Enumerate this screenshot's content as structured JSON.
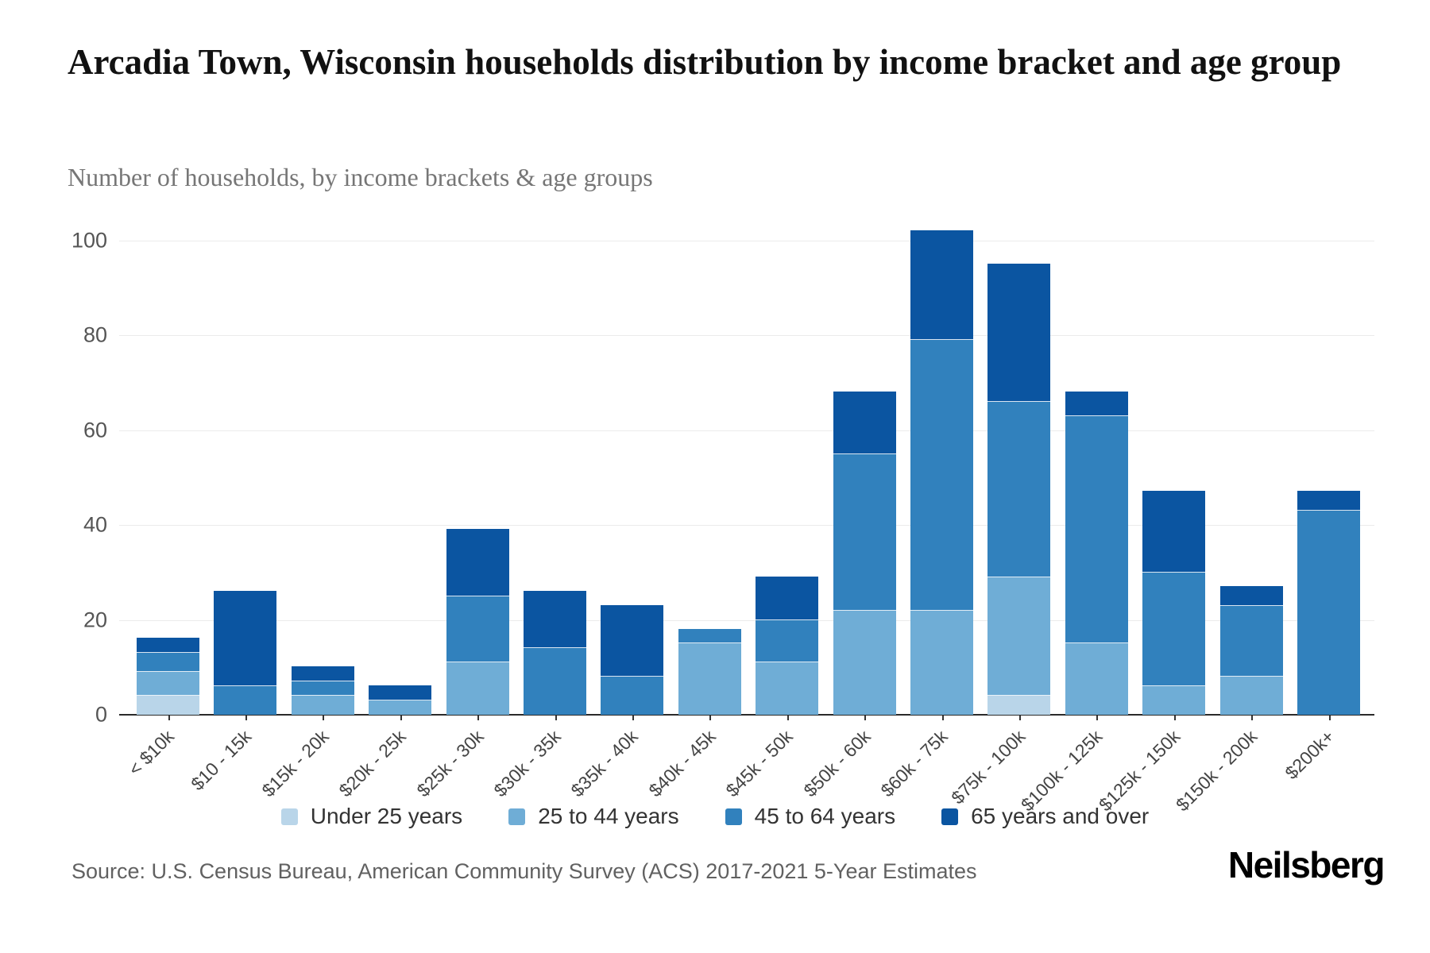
{
  "header": {
    "title": "Arcadia Town, Wisconsin households distribution by income bracket and age group",
    "subtitle": "Number of households, by income brackets & age groups"
  },
  "chart_data": {
    "type": "bar",
    "stacked": true,
    "categories": [
      "< $10k",
      "$10 - 15k",
      "$15k - 20k",
      "$20k - 25k",
      "$25k - 30k",
      "$30k - 35k",
      "$35k - 40k",
      "$40k - 45k",
      "$45k - 50k",
      "$50k - 60k",
      "$60k - 75k",
      "$75k - 100k",
      "$100k - 125k",
      "$125k - 150k",
      "$150k - 200k",
      "$200k+"
    ],
    "series": [
      {
        "name": "Under 25 years",
        "color": "#b9d5e9",
        "values": [
          4,
          0,
          0,
          0,
          0,
          0,
          0,
          0,
          0,
          0,
          0,
          4,
          0,
          0,
          0,
          0
        ]
      },
      {
        "name": "25 to 44 years",
        "color": "#6fadd6",
        "values": [
          5,
          0,
          4,
          3,
          11,
          0,
          0,
          15,
          11,
          22,
          22,
          25,
          15,
          6,
          8,
          0
        ]
      },
      {
        "name": "45 to 64 years",
        "color": "#3181bd",
        "values": [
          4,
          6,
          3,
          0,
          14,
          14,
          8,
          3,
          9,
          33,
          57,
          37,
          48,
          24,
          15,
          43
        ]
      },
      {
        "name": "65 years and over",
        "color": "#0b55a1",
        "values": [
          3,
          20,
          3,
          3,
          14,
          12,
          15,
          0,
          9,
          13,
          23,
          29,
          5,
          17,
          4,
          4
        ]
      }
    ],
    "totals": [
      16,
      26,
      10,
      6,
      39,
      26,
      23,
      18,
      29,
      68,
      102,
      95,
      68,
      47,
      27,
      47
    ],
    "yticks": [
      0,
      20,
      40,
      60,
      80,
      100
    ],
    "ylim": [
      0,
      108
    ],
    "grid": "horizontal",
    "legend_position": "bottom",
    "xlabel": "",
    "ylabel": ""
  },
  "footer": {
    "source": "Source: U.S. Census Bureau, American Community Survey (ACS) 2017-2021 5-Year Estimates",
    "brand": "Neilsberg"
  }
}
